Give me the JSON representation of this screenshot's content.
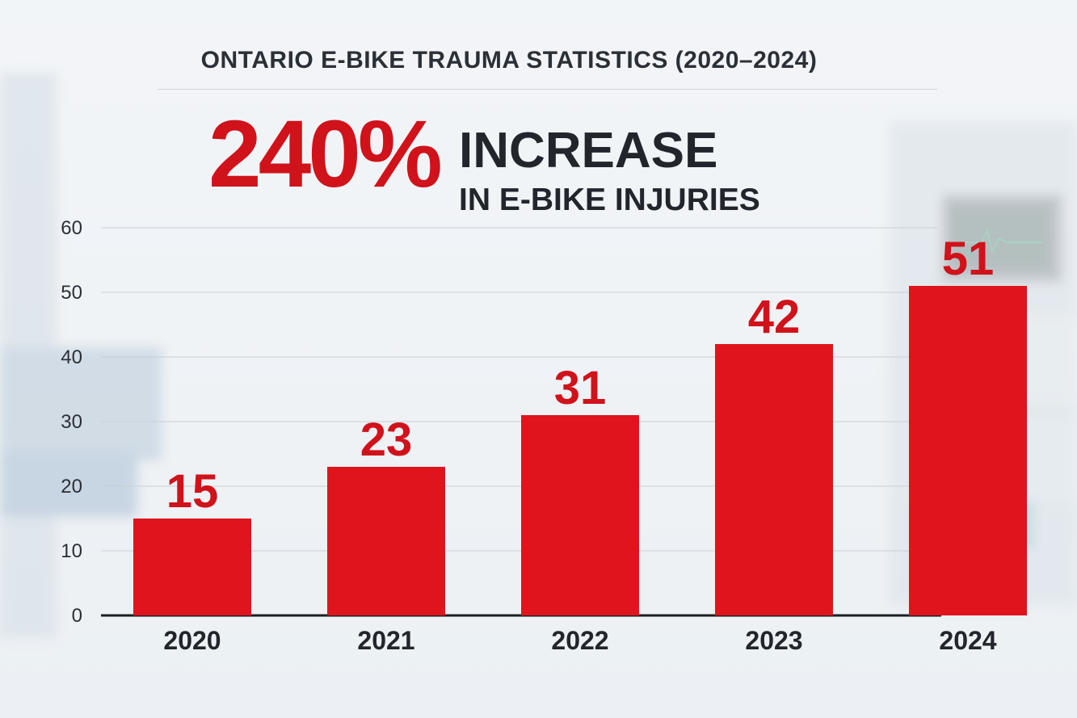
{
  "headline": {
    "title": "ONTARIO E-BIKE TRAUMA STATISTICS (2020–2024)",
    "big_number": "240%",
    "line1": "INCREASE",
    "line2": "IN E-BIKE INJURIES"
  },
  "colors": {
    "bar": "#df141c",
    "accent": "#d0121b",
    "text": "#22262c"
  },
  "chart_data": {
    "type": "bar",
    "categories": [
      "2020",
      "2021",
      "2022",
      "2023",
      "2024"
    ],
    "values": [
      15,
      23,
      31,
      42,
      51
    ],
    "data_labels": [
      "15",
      "23",
      "31",
      "42",
      "51"
    ],
    "yticks": [
      0,
      10,
      20,
      30,
      40,
      50,
      60
    ],
    "ylim": [
      0,
      60
    ],
    "grid": true,
    "legend": "none"
  }
}
